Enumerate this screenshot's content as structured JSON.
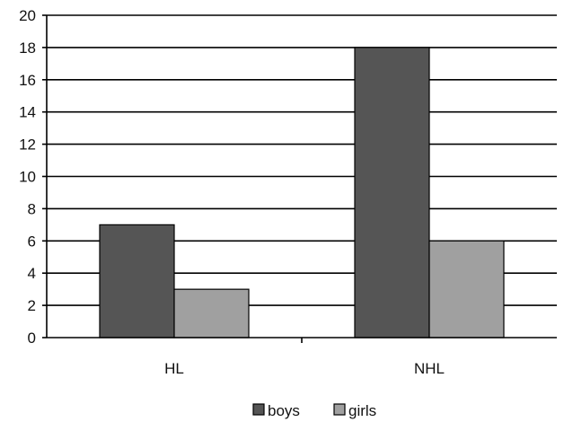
{
  "chart_data": {
    "type": "bar",
    "categories": [
      "HL",
      "NHL"
    ],
    "series": [
      {
        "name": "boys",
        "values": [
          7,
          18
        ],
        "color": "#555555"
      },
      {
        "name": "girls",
        "values": [
          3,
          6
        ],
        "color": "#a0a0a0"
      }
    ],
    "ylim": [
      0,
      20
    ],
    "yticks": [
      0,
      2,
      4,
      6,
      8,
      10,
      12,
      14,
      16,
      18,
      20
    ],
    "grid": true,
    "legend": "bottom"
  }
}
